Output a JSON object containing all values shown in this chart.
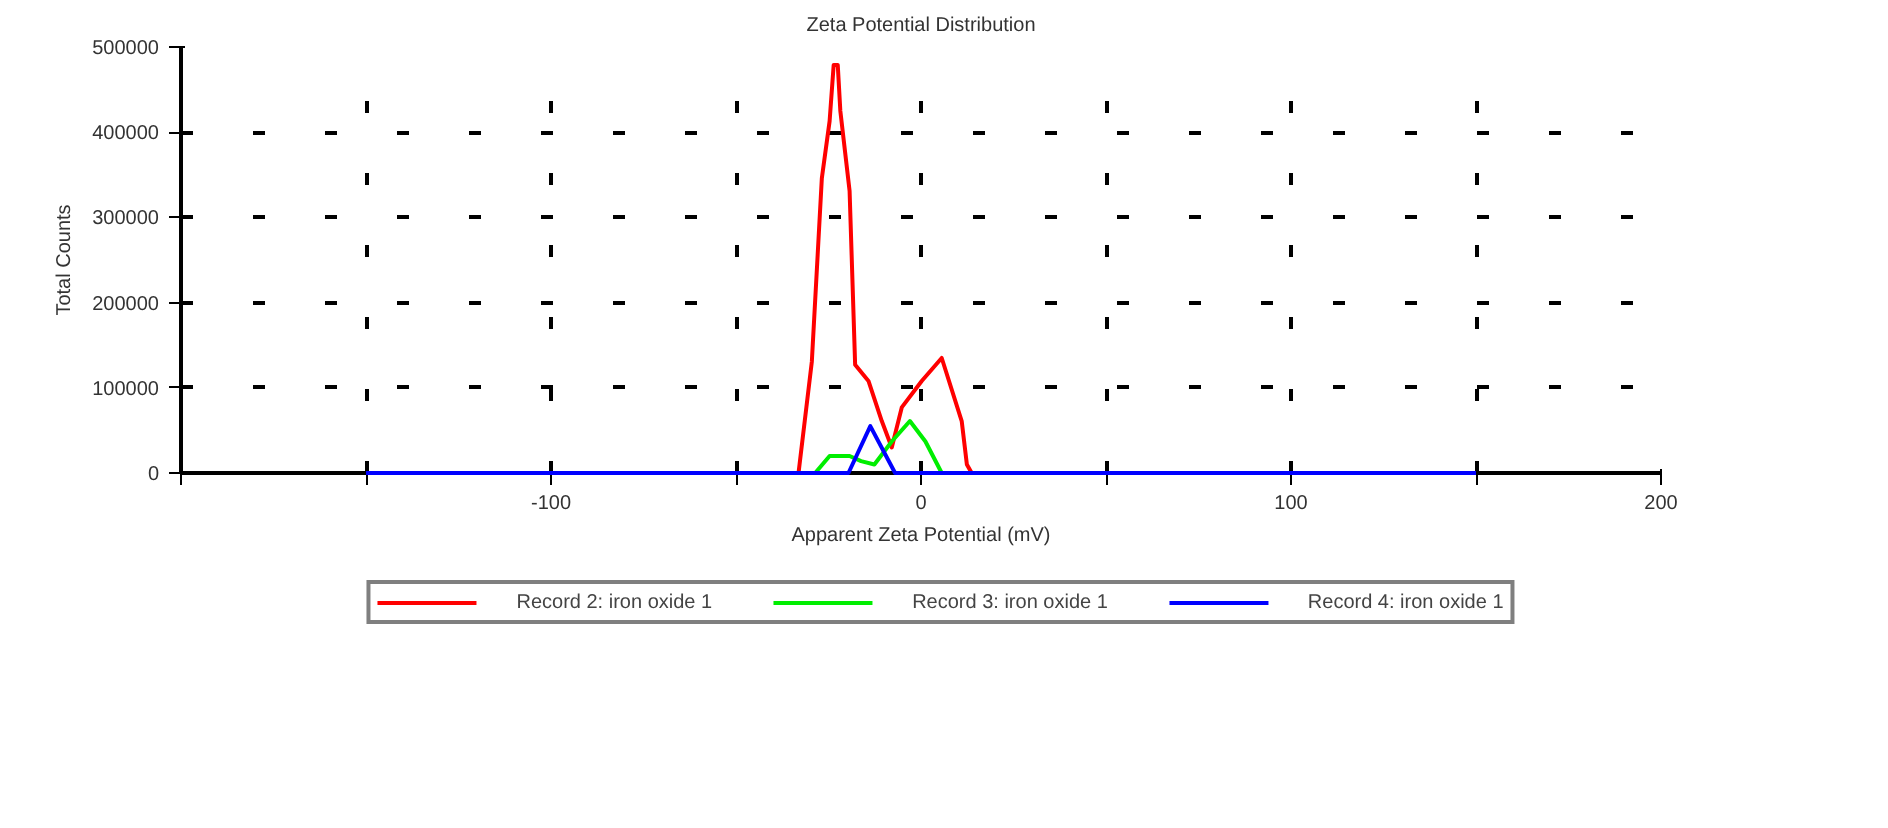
{
  "chart_data": {
    "type": "line",
    "title": "Zeta Potential Distribution",
    "xlabel": "Apparent Zeta Potential (mV)",
    "ylabel": "Total Counts",
    "xlim": [
      -200,
      200
    ],
    "xticks": [
      {
        "value": -200,
        "label": null
      },
      {
        "value": -150,
        "label": null
      },
      -100,
      {
        "value": -50,
        "label": null
      },
      0,
      {
        "value": 50,
        "label": null
      },
      100,
      {
        "value": 150,
        "label": null
      },
      200
    ],
    "ylim": [
      0,
      500000
    ],
    "yticks": [
      0,
      100000,
      200000,
      300000,
      400000,
      500000
    ],
    "grid": true,
    "legend": "bottom",
    "line_style": "solid",
    "marker": "none",
    "series": [
      {
        "name": "Record 2: iron oxide 1",
        "color": "#ff0000",
        "x": [
          -33.1,
          -29.5,
          -26.8,
          -24.7,
          -23.6,
          -22.5,
          -21.8,
          -19.3,
          -17.8,
          -14.2,
          -10.6,
          -7.9,
          -5.2,
          0.2,
          5.6,
          11.0,
          12.4,
          13.7
        ],
        "values": [
          0,
          131000,
          346000,
          413000,
          479000,
          479000,
          425000,
          331000,
          127000,
          108000,
          61000,
          30000,
          77000,
          108000,
          135000,
          61000,
          10000,
          0
        ]
      },
      {
        "name": "Record 3: iron oxide 1",
        "color": "#00ee00",
        "x": [
          -28.6,
          -24.7,
          -19.3,
          -16.2,
          -12.6,
          -7.9,
          -3.0,
          1.2,
          5.6
        ],
        "values": [
          0,
          20000,
          20000,
          14000,
          10000,
          37000,
          61000,
          37000,
          0
        ]
      },
      {
        "name": "Record 4: iron oxide 1",
        "color": "#0000ff",
        "x": [
          -150,
          -19.6,
          -13.7,
          -7.0,
          150
        ],
        "values": [
          0,
          0,
          55000,
          0,
          0
        ]
      }
    ]
  }
}
